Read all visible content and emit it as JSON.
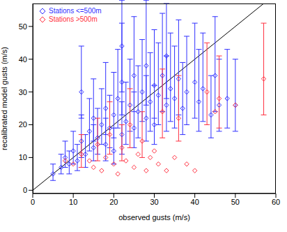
{
  "chart_data": {
    "type": "scatter",
    "x_label": "observed gusts (m/s)",
    "y_label": "recalibrated model gusts (m/s)",
    "xlim": [
      0,
      60
    ],
    "ylim": [
      -1,
      57
    ],
    "xticks": [
      0,
      10,
      20,
      30,
      40,
      50,
      60
    ],
    "yticks": [
      0,
      10,
      20,
      30,
      40,
      50
    ],
    "legend": "upper left",
    "marker": "diamond",
    "diagonal": {
      "x": [
        0,
        60
      ],
      "y": [
        0,
        60
      ]
    },
    "series": [
      {
        "name": "Stations <=500m",
        "color": "#3030ff",
        "x": [
          5,
          7,
          8,
          9,
          10,
          11,
          12,
          12,
          13,
          14,
          15,
          15,
          16,
          17,
          18,
          18,
          19,
          20,
          20,
          21,
          22,
          22,
          23,
          24,
          25,
          25,
          26,
          27,
          28,
          28,
          29,
          30,
          30,
          31,
          32,
          33,
          34,
          35,
          36,
          37,
          38,
          40,
          41,
          42,
          44,
          45,
          46,
          48,
          50,
          22,
          33
        ],
        "values": [
          5,
          7,
          10,
          8,
          12,
          9,
          15,
          30,
          11,
          18,
          13,
          22,
          16,
          20,
          14,
          25,
          19,
          23,
          12,
          28,
          17,
          33,
          21,
          26,
          19,
          35,
          24,
          30,
          22,
          38,
          27,
          32,
          20,
          29,
          35,
          26,
          31,
          28,
          34,
          25,
          30,
          33,
          27,
          31,
          23,
          35,
          26,
          28,
          26,
          44,
          41
        ],
        "errors": [
          [
            2,
            3
          ],
          [
            2,
            4
          ],
          [
            3,
            5
          ],
          [
            3,
            4
          ],
          [
            4,
            6
          ],
          [
            3,
            5
          ],
          [
            5,
            8
          ],
          [
            8,
            14
          ],
          [
            4,
            6
          ],
          [
            6,
            10
          ],
          [
            4,
            7
          ],
          [
            7,
            12
          ],
          [
            5,
            9
          ],
          [
            6,
            11
          ],
          [
            5,
            8
          ],
          [
            8,
            14
          ],
          [
            6,
            10
          ],
          [
            7,
            13
          ],
          [
            4,
            7
          ],
          [
            9,
            15
          ],
          [
            6,
            10
          ],
          [
            10,
            18
          ],
          [
            7,
            12
          ],
          [
            8,
            14
          ],
          [
            6,
            11
          ],
          [
            11,
            18
          ],
          [
            8,
            14
          ],
          [
            9,
            16
          ],
          [
            7,
            13
          ],
          [
            12,
            20
          ],
          [
            9,
            15
          ],
          [
            10,
            17
          ],
          [
            6,
            12
          ],
          [
            9,
            16
          ],
          [
            11,
            19
          ],
          [
            8,
            15
          ],
          [
            10,
            17
          ],
          [
            9,
            16
          ],
          [
            11,
            18
          ],
          [
            8,
            14
          ],
          [
            10,
            17
          ],
          [
            11,
            18
          ],
          [
            9,
            16
          ],
          [
            10,
            17
          ],
          [
            7,
            12
          ],
          [
            11,
            18
          ],
          [
            8,
            14
          ],
          [
            9,
            15
          ],
          [
            8,
            14
          ],
          [
            14,
            14
          ],
          [
            13,
            16
          ]
        ]
      },
      {
        "name": "Stations >500m",
        "color": "#ff3040",
        "x": [
          8,
          10,
          12,
          14,
          15,
          16,
          17,
          18,
          19,
          20,
          21,
          22,
          23,
          24,
          25,
          26,
          27,
          28,
          29,
          30,
          31,
          32,
          33,
          35,
          36,
          38,
          40,
          43,
          45,
          46,
          50,
          57
        ],
        "values": [
          9,
          8,
          11,
          9,
          7,
          14,
          6,
          10,
          17,
          8,
          5,
          13,
          9,
          20,
          7,
          11,
          15,
          6,
          10,
          12,
          8,
          24,
          6,
          10,
          22,
          8,
          6,
          30,
          24,
          28,
          26,
          34
        ],
        "errors": [
          null,
          null,
          [
            4,
            6
          ],
          null,
          null,
          [
            5,
            8
          ],
          null,
          null,
          [
            6,
            10
          ],
          null,
          null,
          [
            4,
            7
          ],
          null,
          [
            7,
            11
          ],
          null,
          null,
          [
            5,
            9
          ],
          null,
          null,
          null,
          null,
          [
            8,
            13
          ],
          null,
          null,
          [
            7,
            13
          ],
          null,
          null,
          [
            10,
            15
          ],
          null,
          [
            9,
            13
          ],
          null,
          [
            11,
            17
          ]
        ]
      }
    ]
  }
}
